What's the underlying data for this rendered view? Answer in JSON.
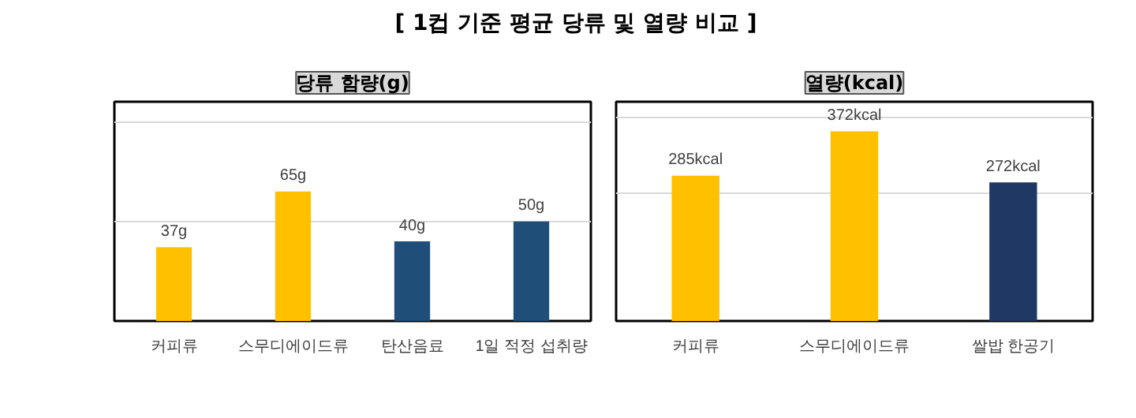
{
  "chart_data": [
    {
      "type": "bar",
      "title": "[ 1컵 기준 평균 당류 및 열량 비교 ]",
      "subtitle": "당류 함량(g)",
      "categories": [
        "커피류",
        "스무디에이드류",
        "탄산음료",
        "1일 적정 섭취량"
      ],
      "values": [
        37,
        65,
        40,
        50
      ],
      "colors": [
        "#ffc000",
        "#ffc000",
        "#1f4e79",
        "#1f4e79"
      ],
      "value_labels": [
        "37g",
        "65g",
        "40g",
        "50g"
      ],
      "ylim": [
        0,
        110
      ],
      "yticks": [
        {
          "value": 0,
          "label": null
        },
        {
          "value": 50,
          "label": null
        },
        {
          "value": 100,
          "label": null
        }
      ],
      "grid": "y",
      "tick_labels": "x"
    },
    {
      "type": "bar",
      "title": "열량(kcal)",
      "categories": [
        "커피류",
        "스무디에이드류",
        "쌀밥 한공기"
      ],
      "values": [
        285,
        372,
        272
      ],
      "colors": [
        "#ffc000",
        "#ffc000",
        "#203864"
      ],
      "value_labels": [
        "285kcal",
        "372kcal",
        "272kcal"
      ],
      "ylim": [
        0,
        430
      ],
      "yticks": [
        {
          "value": 0,
          "label": null
        },
        {
          "value": 250,
          "label": null
        },
        {
          "value": 400,
          "label": null
        }
      ],
      "grid": "y",
      "tick_labels": "x"
    }
  ]
}
